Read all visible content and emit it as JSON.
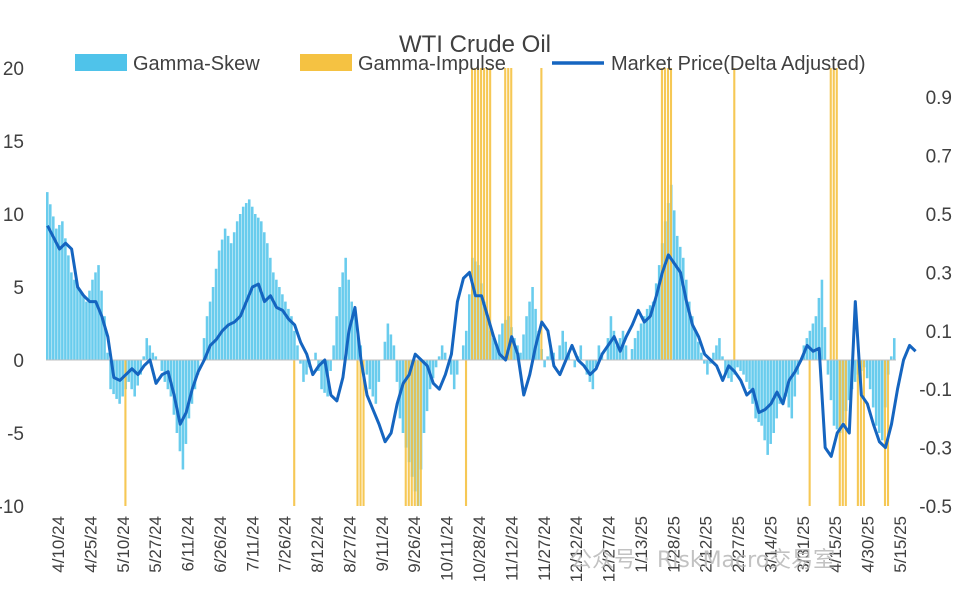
{
  "chart_data": {
    "type": "bar+line",
    "title": "WTI Crude Oil",
    "legend": [
      "Gamma-Skew",
      "Gamma-Impulse",
      "Market Price(Delta Adjusted)"
    ],
    "legend_position": "top",
    "colors": {
      "skew": "#4fc3ea",
      "impulse": "#f5c242",
      "price": "#1565c0",
      "text": "#404040"
    },
    "left_axis": {
      "min": -10,
      "max": 20,
      "ticks": [
        -10,
        -5,
        0,
        5,
        10,
        15,
        20
      ]
    },
    "right_axis": {
      "min": -0.5,
      "max": 1.0,
      "ticks": [
        -0.5,
        -0.3,
        -0.1,
        0.1,
        0.3,
        0.5,
        0.7,
        0.9
      ]
    },
    "x_labels": [
      "4/10/24",
      "4/25/24",
      "5/10/24",
      "5/27/24",
      "6/11/24",
      "6/26/24",
      "7/11/24",
      "7/26/24",
      "8/12/24",
      "8/27/24",
      "9/11/24",
      "9/26/24",
      "10/11/24",
      "10/28/24",
      "11/12/24",
      "11/27/24",
      "12/12/24",
      "12/27/24",
      "1/13/25",
      "1/28/25",
      "2/12/25",
      "2/27/25",
      "3/14/25",
      "3/31/25",
      "4/15/25",
      "4/30/25",
      "5/15/25"
    ],
    "n_days": 282,
    "gamma_skew_anchors": [
      [
        0,
        11.5
      ],
      [
        3,
        9
      ],
      [
        5,
        9.5
      ],
      [
        8,
        6
      ],
      [
        10,
        5
      ],
      [
        13,
        4
      ],
      [
        15,
        5.5
      ],
      [
        17,
        6.5
      ],
      [
        19,
        3
      ],
      [
        21,
        -2
      ],
      [
        24,
        -3
      ],
      [
        27,
        -1.5
      ],
      [
        29,
        -2.5
      ],
      [
        31,
        -1
      ],
      [
        33,
        1.5
      ],
      [
        35,
        0.5
      ],
      [
        37,
        0
      ],
      [
        39,
        -1.5
      ],
      [
        41,
        -2.5
      ],
      [
        43,
        -5
      ],
      [
        45,
        -7.5
      ],
      [
        47,
        -4
      ],
      [
        49,
        -2
      ],
      [
        51,
        0
      ],
      [
        53,
        3
      ],
      [
        55,
        5
      ],
      [
        57,
        7.5
      ],
      [
        59,
        9
      ],
      [
        61,
        8
      ],
      [
        63,
        9.5
      ],
      [
        65,
        10.5
      ],
      [
        67,
        11
      ],
      [
        69,
        10
      ],
      [
        71,
        9.5
      ],
      [
        73,
        8
      ],
      [
        75,
        6
      ],
      [
        77,
        5
      ],
      [
        79,
        4
      ],
      [
        81,
        3
      ],
      [
        83,
        1
      ],
      [
        85,
        -1.5
      ],
      [
        87,
        -0.5
      ],
      [
        89,
        0.5
      ],
      [
        91,
        -2
      ],
      [
        93,
        -2.5
      ],
      [
        95,
        1
      ],
      [
        97,
        5
      ],
      [
        99,
        7
      ],
      [
        101,
        4
      ],
      [
        103,
        2
      ],
      [
        105,
        0
      ],
      [
        107,
        -2
      ],
      [
        109,
        -3
      ],
      [
        111,
        0
      ],
      [
        113,
        2.5
      ],
      [
        115,
        1
      ],
      [
        117,
        -4
      ],
      [
        119,
        -6
      ],
      [
        121,
        -8
      ],
      [
        123,
        -10
      ],
      [
        125,
        -5
      ],
      [
        127,
        -2
      ],
      [
        129,
        -0.5
      ],
      [
        131,
        1
      ],
      [
        133,
        0
      ],
      [
        135,
        -2
      ],
      [
        137,
        0
      ],
      [
        139,
        2
      ],
      [
        141,
        7
      ],
      [
        143,
        6.5
      ],
      [
        145,
        4
      ],
      [
        147,
        2
      ],
      [
        149,
        1
      ],
      [
        151,
        2.5
      ],
      [
        153,
        3
      ],
      [
        155,
        1.5
      ],
      [
        157,
        0.5
      ],
      [
        159,
        3
      ],
      [
        161,
        5
      ],
      [
        163,
        2
      ],
      [
        165,
        -0.5
      ],
      [
        167,
        1
      ],
      [
        169,
        0
      ],
      [
        171,
        2
      ],
      [
        173,
        0.5
      ],
      [
        175,
        -0.5
      ],
      [
        177,
        1
      ],
      [
        179,
        -1
      ],
      [
        181,
        -2
      ],
      [
        183,
        1
      ],
      [
        185,
        0
      ],
      [
        187,
        3
      ],
      [
        189,
        1
      ],
      [
        191,
        2
      ],
      [
        193,
        0
      ],
      [
        195,
        1.5
      ],
      [
        197,
        2.5
      ],
      [
        199,
        3.5
      ],
      [
        201,
        4
      ],
      [
        203,
        6.5
      ],
      [
        205,
        9.5
      ],
      [
        207,
        12
      ],
      [
        209,
        8.5
      ],
      [
        211,
        7
      ],
      [
        213,
        4
      ],
      [
        215,
        2
      ],
      [
        217,
        0.5
      ],
      [
        219,
        -1
      ],
      [
        221,
        0.5
      ],
      [
        223,
        1.5
      ],
      [
        225,
        -1
      ],
      [
        227,
        -1.5
      ],
      [
        229,
        -0.5
      ],
      [
        231,
        -1
      ],
      [
        233,
        -2
      ],
      [
        235,
        -4
      ],
      [
        237,
        -4.5
      ],
      [
        239,
        -6.5
      ],
      [
        241,
        -5
      ],
      [
        243,
        -3
      ],
      [
        245,
        -2.5
      ],
      [
        247,
        -4
      ],
      [
        249,
        -1
      ],
      [
        251,
        1
      ],
      [
        253,
        2
      ],
      [
        255,
        3
      ],
      [
        257,
        5.5
      ],
      [
        259,
        -1
      ],
      [
        261,
        -4.5
      ],
      [
        263,
        -5
      ],
      [
        265,
        -3.5
      ],
      [
        267,
        -2
      ],
      [
        269,
        -1
      ],
      [
        271,
        -0.5
      ],
      [
        273,
        -2
      ],
      [
        275,
        -4.5
      ],
      [
        277,
        -5.5
      ],
      [
        279,
        -1
      ],
      [
        281,
        1.5
      ]
    ],
    "gamma_impulse_bars": [
      [
        26,
        -10
      ],
      [
        82,
        -10
      ],
      [
        103,
        -10
      ],
      [
        104,
        -10
      ],
      [
        105,
        -10
      ],
      [
        119,
        -10
      ],
      [
        120,
        -10
      ],
      [
        121,
        -10
      ],
      [
        122,
        -10
      ],
      [
        123,
        -10
      ],
      [
        124,
        -10
      ],
      [
        139,
        -10
      ],
      [
        141,
        20
      ],
      [
        142,
        20
      ],
      [
        143,
        20
      ],
      [
        144,
        20
      ],
      [
        145,
        20
      ],
      [
        146,
        20
      ],
      [
        147,
        20
      ],
      [
        152,
        20
      ],
      [
        153,
        20
      ],
      [
        154,
        20
      ],
      [
        164,
        20
      ],
      [
        204,
        20
      ],
      [
        205,
        20
      ],
      [
        206,
        20
      ],
      [
        207,
        20
      ],
      [
        228,
        20
      ],
      [
        253,
        -10
      ],
      [
        260,
        20
      ],
      [
        261,
        20
      ],
      [
        262,
        20
      ],
      [
        263,
        -10
      ],
      [
        264,
        -10
      ],
      [
        265,
        -10
      ],
      [
        269,
        -10
      ],
      [
        270,
        -10
      ],
      [
        271,
        -10
      ],
      [
        278,
        -10
      ],
      [
        279,
        -10
      ]
    ],
    "market_price_anchors": [
      [
        0,
        0.46
      ],
      [
        2,
        0.42
      ],
      [
        4,
        0.38
      ],
      [
        6,
        0.4
      ],
      [
        8,
        0.38
      ],
      [
        10,
        0.25
      ],
      [
        12,
        0.22
      ],
      [
        14,
        0.2
      ],
      [
        16,
        0.2
      ],
      [
        18,
        0.15
      ],
      [
        20,
        0.08
      ],
      [
        22,
        -0.06
      ],
      [
        24,
        -0.07
      ],
      [
        26,
        -0.05
      ],
      [
        28,
        -0.03
      ],
      [
        30,
        -0.05
      ],
      [
        32,
        -0.02
      ],
      [
        34,
        0.0
      ],
      [
        36,
        -0.08
      ],
      [
        38,
        -0.05
      ],
      [
        40,
        -0.04
      ],
      [
        42,
        -0.12
      ],
      [
        44,
        -0.22
      ],
      [
        46,
        -0.18
      ],
      [
        48,
        -0.1
      ],
      [
        50,
        -0.04
      ],
      [
        52,
        0.0
      ],
      [
        54,
        0.05
      ],
      [
        56,
        0.07
      ],
      [
        58,
        0.1
      ],
      [
        60,
        0.12
      ],
      [
        62,
        0.13
      ],
      [
        64,
        0.15
      ],
      [
        66,
        0.2
      ],
      [
        68,
        0.25
      ],
      [
        70,
        0.26
      ],
      [
        72,
        0.2
      ],
      [
        74,
        0.22
      ],
      [
        76,
        0.18
      ],
      [
        78,
        0.17
      ],
      [
        80,
        0.14
      ],
      [
        82,
        0.12
      ],
      [
        84,
        0.06
      ],
      [
        86,
        0.02
      ],
      [
        88,
        -0.05
      ],
      [
        90,
        -0.02
      ],
      [
        92,
        0.0
      ],
      [
        94,
        -0.12
      ],
      [
        96,
        -0.14
      ],
      [
        98,
        -0.06
      ],
      [
        100,
        0.1
      ],
      [
        102,
        0.18
      ],
      [
        104,
        0.0
      ],
      [
        106,
        -0.12
      ],
      [
        108,
        -0.17
      ],
      [
        110,
        -0.22
      ],
      [
        112,
        -0.28
      ],
      [
        114,
        -0.25
      ],
      [
        116,
        -0.15
      ],
      [
        118,
        -0.08
      ],
      [
        120,
        -0.05
      ],
      [
        122,
        0.02
      ],
      [
        124,
        0.0
      ],
      [
        126,
        -0.02
      ],
      [
        128,
        -0.08
      ],
      [
        130,
        -0.1
      ],
      [
        132,
        -0.05
      ],
      [
        134,
        0.02
      ],
      [
        136,
        0.2
      ],
      [
        138,
        0.28
      ],
      [
        140,
        0.3
      ],
      [
        142,
        0.22
      ],
      [
        144,
        0.22
      ],
      [
        146,
        0.15
      ],
      [
        148,
        0.08
      ],
      [
        150,
        0.02
      ],
      [
        152,
        0.0
      ],
      [
        154,
        0.08
      ],
      [
        156,
        0.02
      ],
      [
        158,
        -0.12
      ],
      [
        160,
        -0.05
      ],
      [
        162,
        0.05
      ],
      [
        164,
        0.13
      ],
      [
        166,
        0.1
      ],
      [
        168,
        -0.02
      ],
      [
        170,
        -0.05
      ],
      [
        172,
        0.0
      ],
      [
        174,
        0.05
      ],
      [
        176,
        0.0
      ],
      [
        178,
        -0.02
      ],
      [
        180,
        -0.05
      ],
      [
        182,
        -0.03
      ],
      [
        184,
        0.02
      ],
      [
        186,
        0.05
      ],
      [
        188,
        0.08
      ],
      [
        190,
        0.03
      ],
      [
        192,
        0.08
      ],
      [
        194,
        0.12
      ],
      [
        196,
        0.17
      ],
      [
        198,
        0.13
      ],
      [
        200,
        0.15
      ],
      [
        202,
        0.22
      ],
      [
        204,
        0.3
      ],
      [
        206,
        0.36
      ],
      [
        208,
        0.33
      ],
      [
        210,
        0.3
      ],
      [
        212,
        0.2
      ],
      [
        214,
        0.12
      ],
      [
        216,
        0.08
      ],
      [
        218,
        0.02
      ],
      [
        220,
        0.0
      ],
      [
        222,
        -0.02
      ],
      [
        224,
        -0.07
      ],
      [
        226,
        -0.02
      ],
      [
        228,
        -0.04
      ],
      [
        230,
        -0.07
      ],
      [
        232,
        -0.12
      ],
      [
        234,
        -0.1
      ],
      [
        236,
        -0.18
      ],
      [
        238,
        -0.17
      ],
      [
        240,
        -0.15
      ],
      [
        242,
        -0.11
      ],
      [
        244,
        -0.15
      ],
      [
        246,
        -0.07
      ],
      [
        248,
        -0.04
      ],
      [
        250,
        0.0
      ],
      [
        252,
        0.05
      ],
      [
        254,
        0.03
      ],
      [
        256,
        0.04
      ],
      [
        258,
        -0.3
      ],
      [
        260,
        -0.33
      ],
      [
        262,
        -0.25
      ],
      [
        264,
        -0.22
      ],
      [
        266,
        -0.25
      ],
      [
        268,
        0.2
      ],
      [
        270,
        -0.12
      ],
      [
        272,
        -0.15
      ],
      [
        274,
        -0.22
      ],
      [
        276,
        -0.28
      ],
      [
        278,
        -0.3
      ],
      [
        280,
        -0.22
      ],
      [
        282,
        -0.1
      ],
      [
        284,
        0.0
      ],
      [
        286,
        0.05
      ],
      [
        288,
        0.03
      ]
    ]
  },
  "watermark": "公众号 · RiskMacro交易室"
}
